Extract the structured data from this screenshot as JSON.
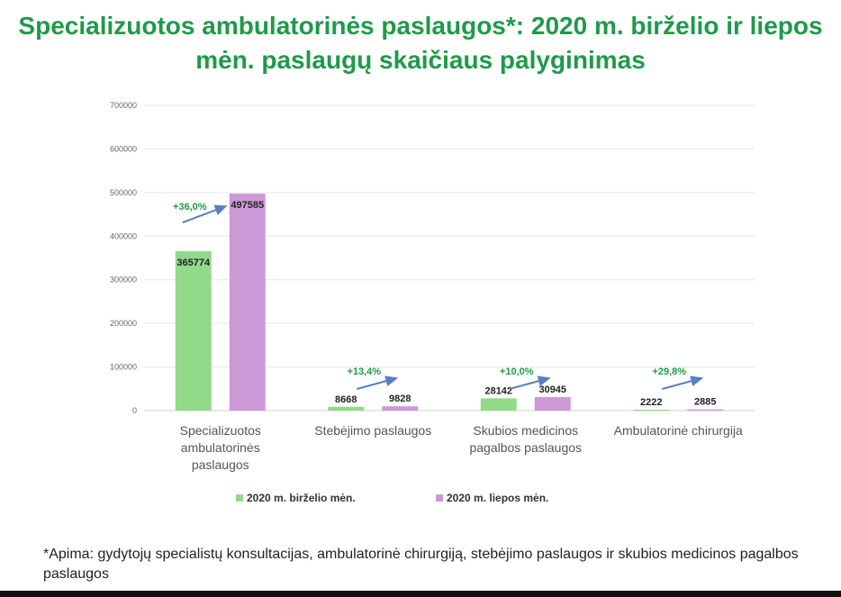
{
  "title": "Specializuotos ambulatorinės paslaugos*: 2020 m. birželio ir liepos mėn. paslaugų skaičiaus palyginimas",
  "footnote": "*Apima: gydytojų specialistų konsultacijas, ambulatorinė chirurgiją, stebėjimo paslaugos ir skubios medicinos pagalbos paslaugos",
  "colors": {
    "title": "#1f9a48",
    "june": "#92d98a",
    "july": "#cc99d6",
    "growth": "#1f9a48",
    "arrow": "#5a7fc0",
    "grid": "#e6e6e6"
  },
  "chart_data": {
    "type": "bar",
    "categories": [
      [
        "Specializuotos",
        "ambulatorinės",
        "paslaugos"
      ],
      [
        "Stebėjimo paslaugos"
      ],
      [
        "Skubios medicinos",
        "pagalbos paslaugos"
      ],
      [
        "Ambulatorinė chirurgija"
      ]
    ],
    "series": [
      {
        "name": "2020 m. birželio mėn.",
        "values": [
          365774,
          8668,
          28142,
          2222
        ],
        "labels": [
          "365774",
          "8668",
          "28142",
          "2222"
        ]
      },
      {
        "name": "2020 m. liepos mėn.",
        "values": [
          497585,
          9828,
          30945,
          2885
        ],
        "labels": [
          "497585",
          "9828",
          "30945",
          "2885"
        ]
      }
    ],
    "growth_labels": [
      "+36,0%",
      "+13,4%",
      "+10,0%",
      "+29,8%"
    ],
    "ylim": [
      0,
      700000
    ],
    "yticks": [
      0,
      100000,
      200000,
      300000,
      400000,
      500000,
      600000,
      700000
    ],
    "ytick_labels": [
      "0",
      "100000",
      "200000",
      "300000",
      "400000",
      "500000",
      "600000",
      "700000"
    ],
    "grid": true,
    "legend_position": "bottom"
  }
}
